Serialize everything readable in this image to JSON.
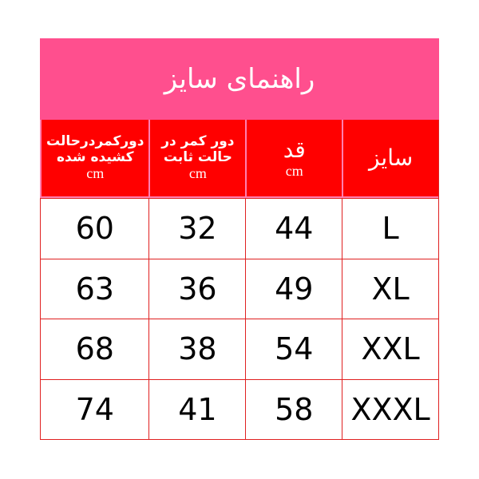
{
  "header": {
    "title": "راهنمای سایز"
  },
  "table": {
    "columns": [
      {
        "label": "سایز"
      },
      {
        "label": "قد",
        "unit": "cm"
      },
      {
        "label": "دور کمر در حالت ثابت",
        "unit": "cm"
      },
      {
        "label": "دورکمردرحالت کشیده شده",
        "unit": "cm"
      }
    ],
    "rows": [
      [
        "L",
        44,
        32,
        60
      ],
      [
        "XL",
        49,
        36,
        63
      ],
      [
        "XXL",
        54,
        38,
        68
      ],
      [
        "XXXL",
        58,
        41,
        74
      ]
    ]
  }
}
